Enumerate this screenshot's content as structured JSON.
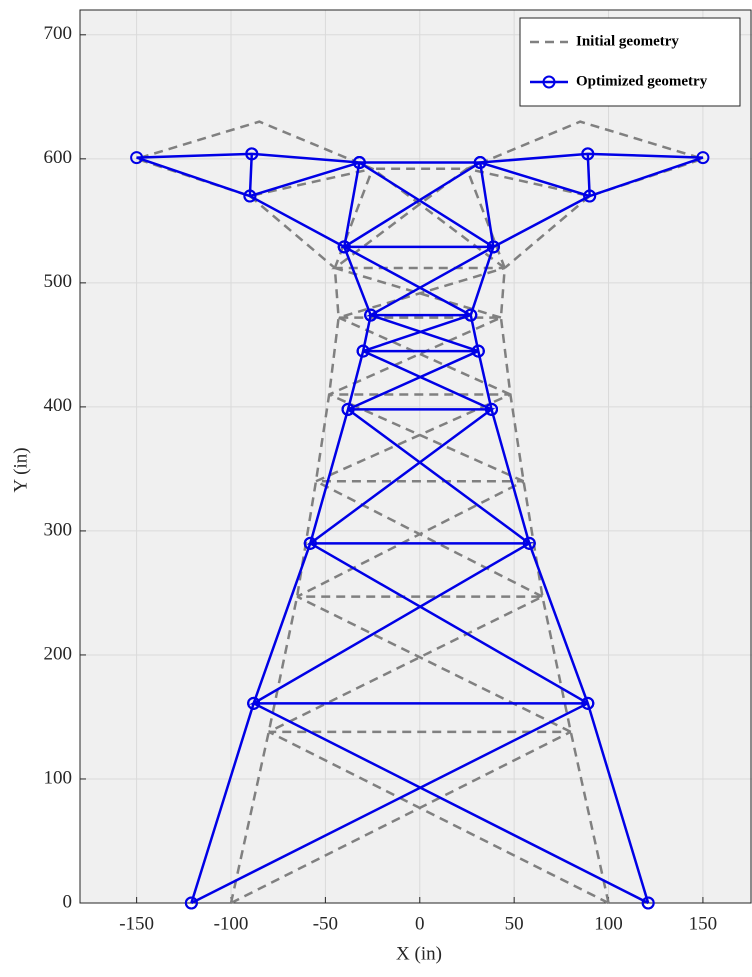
{
  "chart_data": {
    "type": "line",
    "xlabel": "X (in)",
    "ylabel": "Y (in)",
    "xlim": [
      -180,
      176
    ],
    "ylim": [
      0,
      720
    ],
    "xticks": [
      -150,
      -100,
      -50,
      0,
      50,
      100,
      150
    ],
    "yticks": [
      0,
      100,
      200,
      300,
      400,
      500,
      600,
      700
    ],
    "grid": true,
    "legend": "northeast",
    "series": [
      {
        "name": "Initial geometry",
        "color": "#808080",
        "line_style": "dashed",
        "marker": null,
        "x": [
          -100,
          -80,
          -65,
          -55,
          -48,
          -43,
          -45,
          -25,
          -85,
          -150,
          -90,
          -25,
          null,
          -90,
          -45,
          null,
          100,
          80,
          65,
          55,
          48,
          43,
          45,
          25,
          85,
          150,
          90,
          25,
          null,
          90,
          45,
          null,
          -100,
          80,
          -80,
          65,
          -65,
          55,
          -55,
          48,
          -48,
          43,
          -43,
          45,
          -45,
          25,
          -25,
          null,
          100,
          -80,
          null,
          80,
          -65,
          null,
          65,
          -55,
          null,
          55,
          -48,
          null,
          48,
          -43,
          null,
          43,
          -45,
          null,
          45,
          -25
        ],
        "y": [
          0,
          138,
          247,
          340,
          410,
          472,
          512,
          592,
          630,
          600,
          570,
          592,
          null,
          570,
          512,
          null,
          0,
          138,
          247,
          340,
          410,
          472,
          512,
          592,
          630,
          600,
          570,
          592,
          null,
          570,
          512,
          null,
          0,
          138,
          138,
          247,
          247,
          340,
          340,
          410,
          410,
          472,
          472,
          512,
          512,
          592,
          592,
          null,
          0,
          138,
          null,
          138,
          247,
          null,
          247,
          340,
          null,
          340,
          410,
          null,
          410,
          472,
          null,
          472,
          512,
          null,
          512,
          592
        ]
      },
      {
        "name": "Optimized geometry",
        "color": "#0000e6",
        "line_style": "solid",
        "marker": "circle",
        "x": [
          -121,
          -88,
          -58,
          -38,
          -30,
          -26,
          -40,
          -32,
          -89,
          -150,
          -90,
          -32,
          null,
          -89,
          -90,
          -40,
          null,
          121,
          89,
          58,
          38,
          31,
          27,
          39,
          32,
          89,
          150,
          90,
          32,
          null,
          89,
          90,
          39,
          null,
          -121,
          89,
          -88,
          58,
          -58,
          38,
          -38,
          31,
          -30,
          27,
          -26,
          39,
          -40,
          32,
          -32,
          null,
          121,
          -88,
          null,
          89,
          -58,
          null,
          58,
          -38,
          null,
          38,
          -30,
          null,
          31,
          -26,
          null,
          27,
          -40,
          null,
          39,
          -32
        ],
        "y": [
          0,
          161,
          290,
          398,
          445,
          474,
          529,
          597,
          604,
          601,
          570,
          597,
          null,
          604,
          570,
          529,
          null,
          0,
          161,
          290,
          398,
          445,
          474,
          529,
          597,
          604,
          601,
          570,
          597,
          null,
          604,
          570,
          529,
          null,
          0,
          161,
          161,
          290,
          290,
          398,
          398,
          445,
          445,
          474,
          474,
          529,
          529,
          597,
          597,
          null,
          0,
          161,
          null,
          161,
          290,
          null,
          290,
          398,
          null,
          398,
          445,
          null,
          445,
          474,
          null,
          474,
          529,
          null,
          529,
          597
        ]
      }
    ]
  }
}
